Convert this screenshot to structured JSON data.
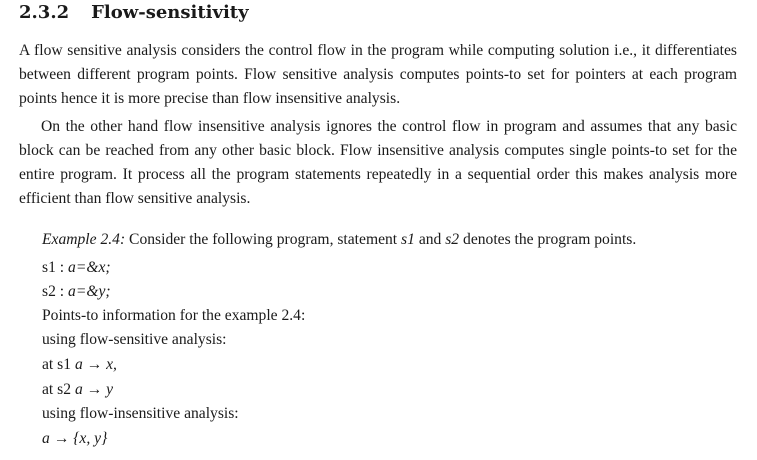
{
  "section": {
    "number": "2.3.2",
    "title": "Flow-sensitivity"
  },
  "paragraphs": [
    "A flow sensitive analysis considers the control flow in the program while computing solution i.e., it differentiates between different program points. Flow sensitive analysis computes points-to set for pointers at each program points hence it is more precise than flow insensitive analysis.",
    "On the other hand flow insensitive analysis ignores the control flow in program and assumes that any basic block can be reached from any other basic block. Flow insensitive analysis computes single points-to set for the entire program. It process all the program statements repeatedly in a sequential order this makes analysis more efficient than flow sensitive analysis."
  ],
  "example": {
    "label": "Example 2.4:",
    "intro_1": "Consider the following program, statement",
    "s1": "s1",
    "intro_and": "and",
    "s2": "s2",
    "intro_2": "denotes the program points.",
    "stmt1_label": "s1 :",
    "stmt1_code": "a=&x;",
    "stmt2_label": "s2 :",
    "stmt2_code": "a=&y;",
    "info_line": "Points-to information for the example 2.4:",
    "fs_label": "using flow-sensitive analysis:",
    "at_s1": "at s1",
    "at_s1_math": "a → x,",
    "at_s2": "at s2",
    "at_s2_math": "a → y",
    "fi_label": "using flow-insensitive analysis:",
    "fi_math": "a → {x, y}"
  }
}
